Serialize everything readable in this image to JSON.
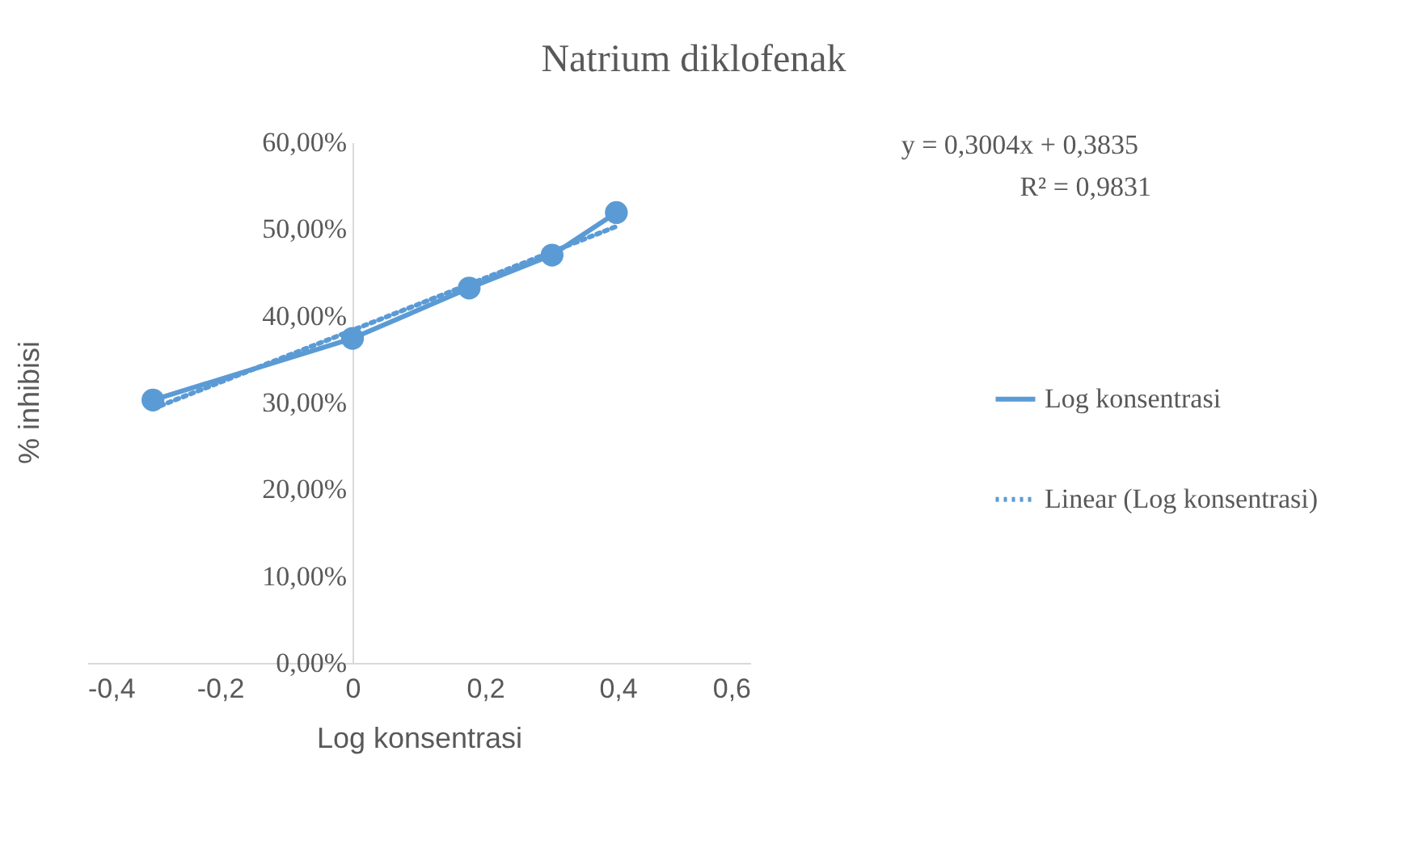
{
  "chart_data": {
    "type": "line",
    "title": "Natrium diklofenak",
    "xlabel": "Log konsentrasi",
    "ylabel": "% inhibisi",
    "series": [
      {
        "name": "Log konsentrasi",
        "color": "#5b9bd5",
        "x": [
          -0.301,
          0,
          0.176,
          0.301,
          0.398
        ],
        "values": [
          0.303,
          0.374,
          0.432,
          0.47,
          0.519
        ],
        "marker": "circle",
        "line_style": "solid"
      },
      {
        "name": "Linear (Log konsentrasi)",
        "color": "#5b9bd5",
        "x": [
          -0.301,
          0.398
        ],
        "values": [
          0.293,
          0.503
        ],
        "marker": "none",
        "line_style": "dotted"
      }
    ],
    "xlim": [
      -0.4,
      0.6
    ],
    "xticks": [
      {
        "value": -0.4,
        "label": "-0,4"
      },
      {
        "value": -0.2,
        "label": "-0,2"
      },
      {
        "value": 0,
        "label": "0"
      },
      {
        "value": 0.2,
        "label": "0,2"
      },
      {
        "value": 0.4,
        "label": "0,4"
      },
      {
        "value": 0.6,
        "label": "0,6"
      }
    ],
    "ylim": [
      0,
      0.6
    ],
    "yticks": [
      {
        "value": 0,
        "label": "0,00%"
      },
      {
        "value": 0.1,
        "label": "10,00%"
      },
      {
        "value": 0.2,
        "label": "20,00%"
      },
      {
        "value": 0.3,
        "label": "30,00%"
      },
      {
        "value": 0.4,
        "label": "40,00%"
      },
      {
        "value": 0.5,
        "label": "50,00%"
      },
      {
        "value": 0.6,
        "label": "60,00%"
      }
    ],
    "grid": false,
    "legend": "right",
    "annotations": [
      "y = 0,3004x + 0,3835",
      "R² = 0,9831"
    ]
  }
}
